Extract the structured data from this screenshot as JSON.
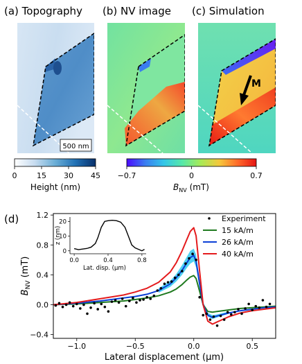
{
  "panels": {
    "a": {
      "label": "(a) Topography",
      "scalebar": "500 nm"
    },
    "b": {
      "label": "(b) NV image"
    },
    "c": {
      "label": "(c) Simulation",
      "arrow_label": "M"
    },
    "d": {
      "label": "(d)"
    }
  },
  "colorbars": {
    "height": {
      "ticks": [
        "0",
        "15",
        "30",
        "45"
      ],
      "label": "Height (nm)",
      "range": [
        0,
        45
      ],
      "colors": [
        "#ffffff",
        "#c6dbef",
        "#6baed6",
        "#2171b5",
        "#08306b"
      ]
    },
    "bnv": {
      "ticks": [
        "−0.7",
        "0",
        "0.7"
      ],
      "label_main": "B",
      "label_sub": "NV",
      "label_unit": " (mT)",
      "range": [
        -0.7,
        0.7
      ],
      "colors": [
        "#4b0aff",
        "#3a7df0",
        "#33c6e8",
        "#56e8a8",
        "#a8ea56",
        "#f5c83c",
        "#ff6a2a",
        "#e51414"
      ]
    }
  },
  "chart_data": [
    {
      "type": "line",
      "xlabel": "Lateral displacement (μm)",
      "ylabel_main": "B",
      "ylabel_sub": "NV",
      "ylabel_unit": " (mT)",
      "xlim": [
        -1.2,
        0.7
      ],
      "ylim": [
        -0.45,
        1.22
      ],
      "xticks": [
        -1.0,
        -0.5,
        0.0,
        0.5
      ],
      "xtick_labels": [
        "−1.0",
        "−0.5",
        "0.0",
        "0.5"
      ],
      "yticks": [
        -0.4,
        0.0,
        0.4,
        0.8,
        1.2
      ],
      "ytick_labels": [
        "−0.4",
        "0.0",
        "0.4",
        "0.8",
        "1.2"
      ],
      "legend_position": "top-right",
      "experiment": {
        "name": "Experiment",
        "color": "#000000",
        "x": [
          -1.18,
          -1.15,
          -1.12,
          -1.09,
          -1.06,
          -1.03,
          -1.0,
          -0.97,
          -0.94,
          -0.91,
          -0.88,
          -0.85,
          -0.82,
          -0.79,
          -0.76,
          -0.73,
          -0.7,
          -0.67,
          -0.64,
          -0.61,
          -0.58,
          -0.55,
          -0.52,
          -0.49,
          -0.46,
          -0.43,
          -0.4,
          -0.37,
          -0.34,
          -0.31,
          -0.28,
          -0.25,
          -0.22,
          -0.19,
          -0.16,
          -0.13,
          -0.1,
          -0.07,
          -0.04,
          -0.01,
          0.02,
          0.05,
          0.08,
          0.11,
          0.14,
          0.17,
          0.2,
          0.23,
          0.26,
          0.29,
          0.32,
          0.35,
          0.38,
          0.41,
          0.44,
          0.47,
          0.5,
          0.53,
          0.56,
          0.59,
          0.62,
          0.65
        ],
        "y": [
          -0.01,
          0.02,
          -0.03,
          0.0,
          0.03,
          -0.02,
          0.01,
          -0.05,
          0.0,
          -0.12,
          -0.04,
          0.02,
          -0.06,
          0.01,
          -0.03,
          -0.09,
          0.04,
          0.06,
          0.03,
          0.08,
          -0.02,
          0.05,
          0.09,
          0.03,
          0.06,
          0.07,
          0.1,
          0.08,
          0.12,
          0.19,
          0.22,
          0.28,
          0.3,
          0.31,
          0.36,
          0.4,
          0.45,
          0.55,
          0.62,
          0.68,
          0.6,
          0.1,
          -0.14,
          -0.12,
          -0.2,
          -0.16,
          -0.28,
          -0.15,
          -0.2,
          -0.1,
          -0.13,
          -0.1,
          -0.06,
          -0.12,
          -0.05,
          0.01,
          -0.07,
          -0.02,
          -0.04,
          0.06,
          -0.03,
          0.01
        ]
      },
      "series": [
        {
          "name": "15 kA/m",
          "color": "#1f7a1f",
          "x": [
            -1.2,
            -1.0,
            -0.8,
            -0.6,
            -0.5,
            -0.4,
            -0.3,
            -0.2,
            -0.15,
            -0.1,
            -0.06,
            -0.03,
            0.0,
            0.02,
            0.05,
            0.08,
            0.12,
            0.16,
            0.2,
            0.3,
            0.4,
            0.5,
            0.6,
            0.7
          ],
          "y": [
            0.0,
            0.01,
            0.03,
            0.05,
            0.07,
            0.09,
            0.12,
            0.17,
            0.21,
            0.27,
            0.33,
            0.37,
            0.39,
            0.35,
            0.18,
            0.0,
            -0.09,
            -0.1,
            -0.09,
            -0.07,
            -0.05,
            -0.04,
            -0.03,
            -0.02
          ]
        },
        {
          "name": "26 kA/m",
          "color": "#0b3fd6",
          "x": [
            -1.2,
            -1.0,
            -0.8,
            -0.6,
            -0.5,
            -0.4,
            -0.3,
            -0.2,
            -0.15,
            -0.1,
            -0.06,
            -0.03,
            0.0,
            0.02,
            0.05,
            0.08,
            0.12,
            0.16,
            0.2,
            0.3,
            0.4,
            0.5,
            0.6,
            0.7
          ],
          "y": [
            0.0,
            0.02,
            0.05,
            0.09,
            0.11,
            0.14,
            0.19,
            0.28,
            0.36,
            0.46,
            0.56,
            0.63,
            0.66,
            0.58,
            0.28,
            0.0,
            -0.14,
            -0.17,
            -0.15,
            -0.11,
            -0.08,
            -0.06,
            -0.04,
            -0.03
          ]
        },
        {
          "name": "40 kA/m",
          "color": "#e41a1c",
          "x": [
            -1.2,
            -1.0,
            -0.8,
            -0.6,
            -0.5,
            -0.4,
            -0.3,
            -0.2,
            -0.15,
            -0.1,
            -0.06,
            -0.03,
            0.0,
            0.02,
            0.05,
            0.08,
            0.12,
            0.16,
            0.2,
            0.3,
            0.4,
            0.5,
            0.6,
            0.7
          ],
          "y": [
            0.0,
            0.03,
            0.08,
            0.13,
            0.17,
            0.22,
            0.3,
            0.44,
            0.56,
            0.72,
            0.87,
            0.98,
            1.03,
            0.92,
            0.45,
            0.0,
            -0.22,
            -0.26,
            -0.23,
            -0.16,
            -0.11,
            -0.08,
            -0.06,
            -0.04
          ]
        }
      ],
      "band": {
        "color": "#33c9f0",
        "x": [
          -0.3,
          -0.2,
          -0.15,
          -0.1,
          -0.06,
          -0.03,
          0.0,
          0.02,
          0.05,
          0.08,
          0.12,
          0.16,
          0.2,
          0.3
        ],
        "lower": [
          0.16,
          0.24,
          0.31,
          0.4,
          0.49,
          0.55,
          0.58,
          0.5,
          0.22,
          -0.04,
          -0.16,
          -0.19,
          -0.17,
          -0.12
        ],
        "upper": [
          0.22,
          0.32,
          0.41,
          0.53,
          0.64,
          0.72,
          0.75,
          0.67,
          0.34,
          0.04,
          -0.11,
          -0.14,
          -0.13,
          -0.09
        ]
      }
    },
    {
      "type": "line",
      "xlabel": "Lat. disp. (μm)",
      "ylabel": "z (nm)",
      "xlim": [
        -0.05,
        0.85
      ],
      "ylim": [
        -2,
        23
      ],
      "xticks": [
        0.0,
        0.4,
        0.8
      ],
      "xtick_labels": [
        "0.0",
        "0.4",
        "0.8"
      ],
      "yticks": [
        0,
        10,
        20
      ],
      "ytick_labels": [
        "0",
        "10",
        "20"
      ],
      "series": [
        {
          "color": "#000000",
          "x": [
            0.0,
            0.05,
            0.1,
            0.15,
            0.2,
            0.25,
            0.28,
            0.32,
            0.36,
            0.4,
            0.45,
            0.5,
            0.55,
            0.6,
            0.64,
            0.68,
            0.72,
            0.76,
            0.8,
            0.83
          ],
          "y": [
            1.5,
            0.8,
            1.2,
            1.6,
            2.5,
            5.0,
            9.0,
            16.0,
            20.0,
            20.5,
            20.8,
            20.5,
            19.5,
            16.0,
            10.0,
            4.0,
            2.0,
            1.0,
            0.0,
            1.0
          ]
        }
      ]
    }
  ]
}
